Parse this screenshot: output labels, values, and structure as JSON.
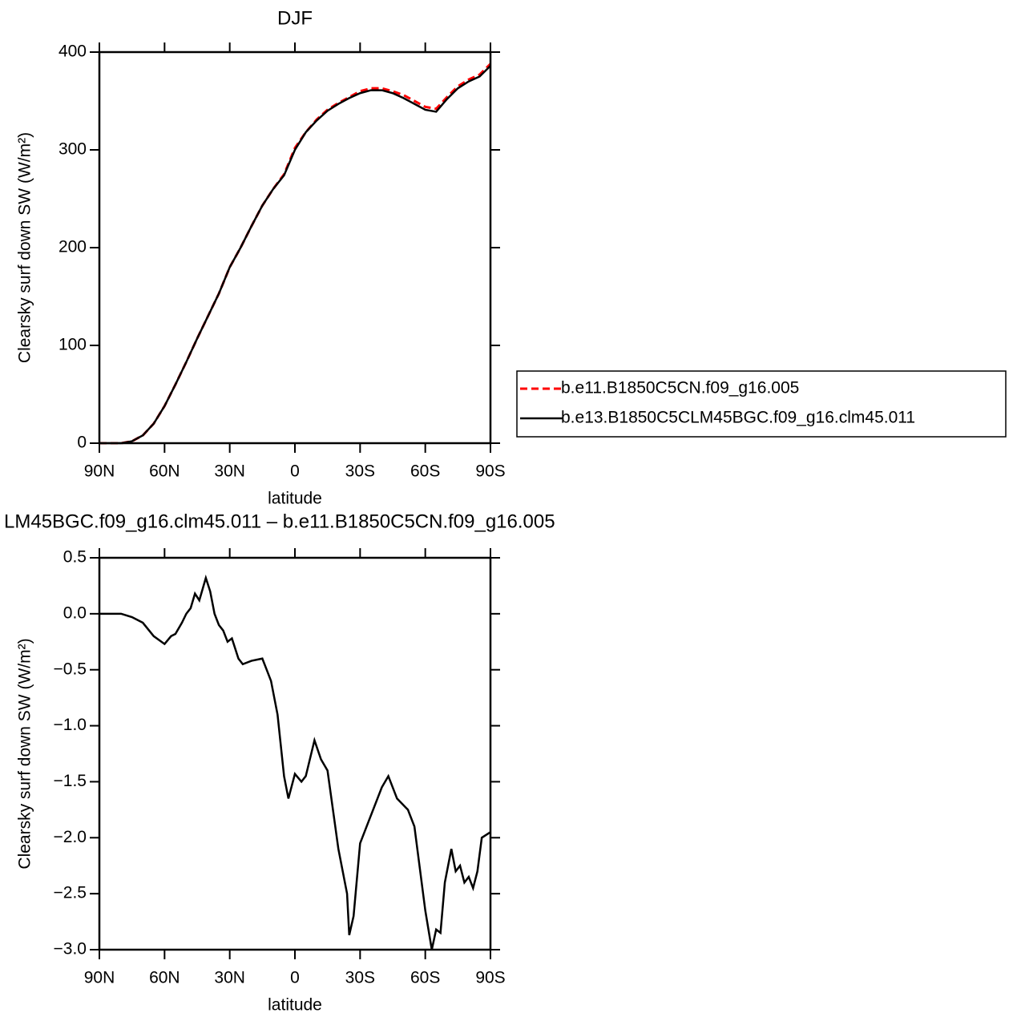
{
  "chart_data": [
    {
      "type": "line",
      "title": "DJF",
      "xlabel": "latitude",
      "ylabel": "Clearsky surf down SW (W/m²)",
      "xlim": [
        90,
        -90
      ],
      "xticks": [
        {
          "value": 90,
          "label": "90N"
        },
        {
          "value": 60,
          "label": "60N"
        },
        {
          "value": 30,
          "label": "30N"
        },
        0,
        {
          "value": -30,
          "label": "30S"
        },
        {
          "value": -60,
          "label": "60S"
        },
        {
          "value": -90,
          "label": "90S"
        }
      ],
      "ylim": [
        0,
        400
      ],
      "yticks": [
        0,
        100,
        200,
        300,
        400
      ],
      "x": [
        90,
        85,
        80,
        75,
        70,
        65,
        60,
        55,
        50,
        45,
        40,
        35,
        30,
        25,
        20,
        15,
        10,
        5,
        0,
        -5,
        -10,
        -15,
        -20,
        -25,
        -30,
        -35,
        -40,
        -45,
        -50,
        -55,
        -60,
        -65,
        -70,
        -75,
        -80,
        -85,
        -90
      ],
      "series": [
        {
          "name": "b.e11.B1850C5CN.f09_g16.005",
          "color": "#ff0000",
          "dashed": true,
          "values": [
            0,
            0,
            0,
            2,
            8,
            20,
            38,
            60,
            83,
            107,
            130,
            153,
            180,
            200,
            222,
            243,
            260,
            275,
            302,
            318,
            331,
            341,
            348,
            354,
            360,
            363,
            363,
            360,
            356,
            350,
            344,
            342,
            354,
            365,
            372,
            377,
            388
          ]
        },
        {
          "name": "b.e13.B1850C5CLM45BGC.f09_g16.clm45.011",
          "color": "#000000",
          "dashed": false,
          "values": [
            0,
            0,
            0,
            2,
            8,
            20,
            38,
            60,
            83,
            107,
            130,
            153,
            180,
            200,
            222,
            243,
            260,
            274,
            300,
            318,
            330,
            340,
            347,
            353,
            358,
            361,
            361,
            358,
            353,
            347,
            341,
            339,
            352,
            363,
            370,
            375,
            386
          ]
        }
      ]
    },
    {
      "type": "line",
      "title": "LM45BGC.f09_g16.clm45.011 – b.e11.B1850C5CN.f09_g16.005",
      "xlabel": "latitude",
      "ylabel": "Clearsky surf down SW (W/m²)",
      "xlim": [
        90,
        -90
      ],
      "xticks": [
        {
          "value": 90,
          "label": "90N"
        },
        {
          "value": 60,
          "label": "60N"
        },
        {
          "value": 30,
          "label": "30N"
        },
        0,
        {
          "value": -30,
          "label": "30S"
        },
        {
          "value": -60,
          "label": "60S"
        },
        {
          "value": -90,
          "label": "90S"
        }
      ],
      "ylim": [
        -3,
        0.5
      ],
      "yticks": [
        {
          "value": -3,
          "label": "−3.0"
        },
        {
          "value": -2.5,
          "label": "−2.5"
        },
        {
          "value": -2,
          "label": "−2.0"
        },
        {
          "value": -1.5,
          "label": "−1.5"
        },
        {
          "value": -1,
          "label": "−1.0"
        },
        {
          "value": -0.5,
          "label": "−0.5"
        },
        {
          "value": 0,
          "label": "0.0"
        },
        0.5
      ],
      "x": [
        90,
        80,
        75,
        70,
        65,
        60,
        57,
        55,
        52,
        50,
        48,
        46,
        44,
        41,
        39,
        37,
        35,
        33,
        31,
        29,
        26,
        24,
        20,
        15,
        13,
        11,
        8,
        5,
        3,
        0,
        -3,
        -5,
        -9,
        -12,
        -15,
        -20,
        -24,
        -25,
        -27,
        -30,
        -35,
        -40,
        -43,
        -47,
        -52,
        -55,
        -60,
        -63,
        -65,
        -67,
        -69,
        -72,
        -74,
        -76,
        -78,
        -80,
        -82,
        -84,
        -86,
        -90
      ],
      "series": [
        {
          "name": null,
          "color": "#000000",
          "dashed": false,
          "values": [
            0,
            0,
            -0.03,
            -0.08,
            -0.2,
            -0.27,
            -0.2,
            -0.18,
            -0.08,
            0,
            0.05,
            0.18,
            0.12,
            0.32,
            0.2,
            0,
            -0.1,
            -0.15,
            -0.25,
            -0.22,
            -0.4,
            -0.45,
            -0.42,
            -0.4,
            -0.5,
            -0.6,
            -0.9,
            -1.45,
            -1.65,
            -1.43,
            -1.5,
            -1.45,
            -1.13,
            -1.3,
            -1.4,
            -2.1,
            -2.5,
            -2.87,
            -2.7,
            -2.05,
            -1.8,
            -1.55,
            -1.45,
            -1.65,
            -1.75,
            -1.9,
            -2.65,
            -3,
            -2.82,
            -2.85,
            -2.4,
            -2.1,
            -2.3,
            -2.25,
            -2.4,
            -2.35,
            -2.45,
            -2.3,
            -2,
            -1.95
          ]
        }
      ]
    }
  ]
}
